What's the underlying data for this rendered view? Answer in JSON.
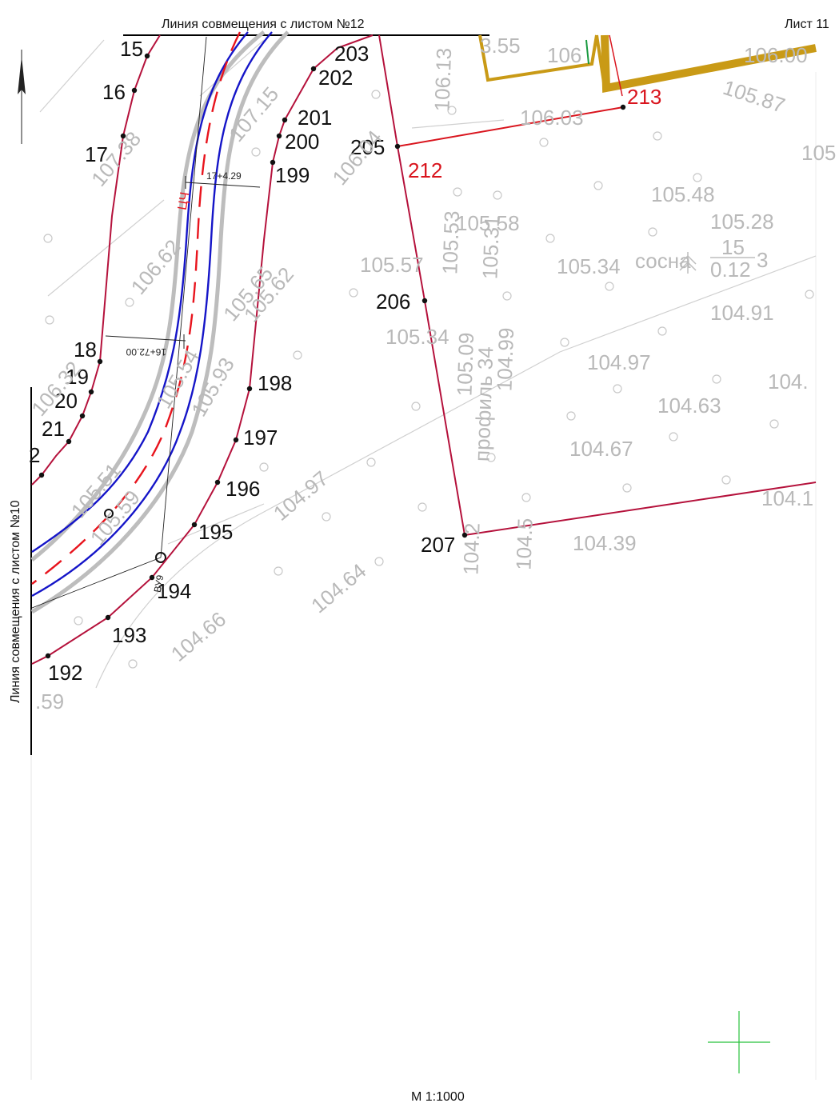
{
  "sheet": {
    "top_match_line": "Линия совмещения с листом №12",
    "left_match_line": "Линия совмещения с листом №10",
    "sheet_label": "Лист 11",
    "scale": "М 1:1000"
  },
  "stations": [
    "17+4.29",
    "16+72.00"
  ],
  "mark_VU": "ВУ9",
  "tree": {
    "label": "сосна",
    "numerator": "15",
    "denominator": "0.12",
    "suffix": "3"
  },
  "boundary_points": [
    "15",
    "16",
    "17",
    "18",
    "19",
    "20",
    "21",
    "2",
    "192",
    "193",
    "194",
    "195",
    "196",
    "197",
    "198",
    "199",
    "200",
    "201",
    "202",
    "203",
    "205",
    "206",
    "207"
  ],
  "red_points": [
    "212",
    "213"
  ],
  "elevations": [
    "107.38",
    "106.62",
    "107.15",
    "105.65",
    "105.62",
    "106.04",
    "106.13",
    "106.03",
    "105.87",
    "105.58",
    "105.53",
    "105.31",
    "105.57",
    "105.48",
    "105.28",
    "105.34",
    "104.91",
    "105.34",
    "105.09",
    "104.99",
    "104.97",
    "104.63",
    "104.67",
    "104.1",
    "104.39",
    "104.97",
    "104.64",
    "104.66",
    "105.54",
    "105.93",
    "105.51",
    "105.59",
    "106.32",
    "104.2",
    "104.5",
    "106",
    "106.00",
    "105",
    "104.",
    ".59",
    "3.55"
  ],
  "profile_note": "профиль 34",
  "colors": {
    "boundary": "#b5123c",
    "road_axis": "#e8141d",
    "road_edge": "#1515c8",
    "shoulder": "#bdbdbd",
    "elev": "#b9b9b9",
    "fence": "#c99a16",
    "cross": "#27c23c"
  }
}
